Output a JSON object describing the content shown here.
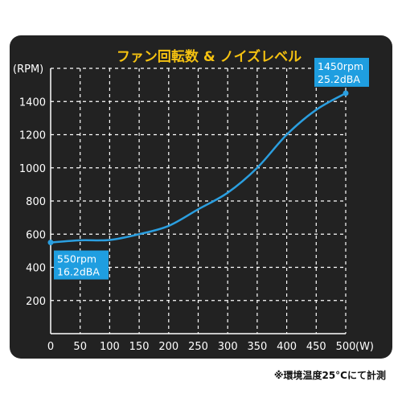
{
  "chart_data": {
    "type": "line",
    "title": "ファン回転数 & ノイズレベル",
    "ylabel": "(RPM)",
    "xlabel": "(W)",
    "x_ticks": [
      0,
      50,
      100,
      150,
      200,
      250,
      300,
      350,
      400,
      450,
      500
    ],
    "y_ticks": [
      200,
      400,
      600,
      800,
      1000,
      1200,
      1400
    ],
    "xlim": [
      0,
      500
    ],
    "ylim": [
      0,
      1600
    ],
    "grid": true,
    "series": [
      {
        "x": [
          0,
          50,
          100,
          150,
          200,
          250,
          300,
          350,
          400,
          450,
          500
        ],
        "values": [
          550,
          563,
          565,
          600,
          650,
          750,
          850,
          1000,
          1200,
          1350,
          1450
        ]
      }
    ],
    "annotations": [
      {
        "x": 0,
        "y": 550,
        "lines": [
          "550rpm",
          "16.2dBA"
        ]
      },
      {
        "x": 500,
        "y": 1450,
        "lines": [
          "1450rpm",
          "25.2dBA"
        ]
      }
    ]
  },
  "colors": {
    "panel": "#222222",
    "line": "#2b9fe0",
    "title": "#f5c211",
    "text": "#ffffff",
    "grid": "#ffffff",
    "label_box": "#1f9ee0"
  },
  "footnote": "※環境温度25°Cにて計測"
}
